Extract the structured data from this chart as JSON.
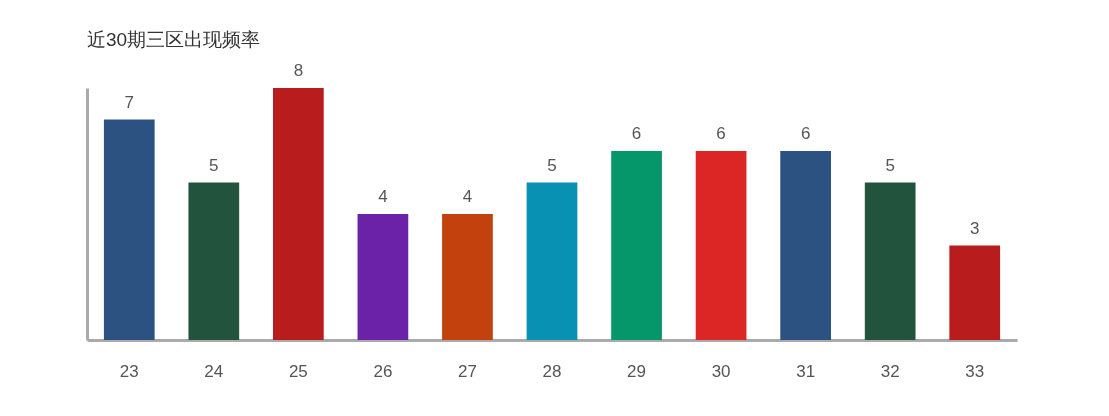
{
  "chart_data": {
    "type": "bar",
    "title": "近30期三区出现频率",
    "categories": [
      "23",
      "24",
      "25",
      "26",
      "27",
      "28",
      "29",
      "30",
      "31",
      "32",
      "33"
    ],
    "values": [
      7,
      5,
      8,
      4,
      4,
      5,
      6,
      6,
      6,
      5,
      3
    ],
    "colors": [
      "#2c5282",
      "#22543d",
      "#b91c1c",
      "#6b21a8",
      "#c2410c",
      "#0891b2",
      "#059669",
      "#dc2626",
      "#2c5282",
      "#22543d",
      "#b91c1c"
    ],
    "ylim": [
      0,
      8
    ],
    "data_labels": true,
    "tick_labels": "x"
  }
}
